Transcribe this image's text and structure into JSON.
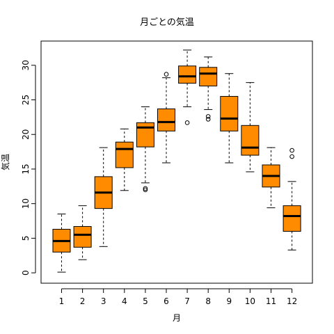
{
  "chart_data": {
    "type": "boxplot",
    "title": "月ごとの気温",
    "xlabel": "月",
    "ylabel": "気温",
    "categories": [
      "1",
      "2",
      "3",
      "4",
      "5",
      "6",
      "7",
      "8",
      "9",
      "10",
      "11",
      "12"
    ],
    "ylim": [
      -1.5,
      33.5
    ],
    "yticks": [
      0,
      5,
      10,
      15,
      20,
      25,
      30
    ],
    "boxes": [
      {
        "min": 0.1,
        "q1": 3.0,
        "median": 4.6,
        "q3": 6.3,
        "max": 8.5,
        "outliers": []
      },
      {
        "min": 1.9,
        "q1": 3.7,
        "median": 5.5,
        "q3": 6.7,
        "max": 9.7,
        "outliers": []
      },
      {
        "min": 3.8,
        "q1": 9.3,
        "median": 11.6,
        "q3": 13.9,
        "max": 18.1,
        "outliers": []
      },
      {
        "min": 11.9,
        "q1": 15.2,
        "median": 17.9,
        "q3": 18.9,
        "max": 20.8,
        "outliers": []
      },
      {
        "min": 13.0,
        "q1": 18.2,
        "median": 21.0,
        "q3": 21.7,
        "max": 24.0,
        "outliers": [
          12.2,
          12.0
        ]
      },
      {
        "min": 15.9,
        "q1": 20.5,
        "median": 21.8,
        "q3": 23.7,
        "max": 28.2,
        "outliers": [
          28.7
        ]
      },
      {
        "min": 24.0,
        "q1": 27.4,
        "median": 28.4,
        "q3": 29.9,
        "max": 32.2,
        "outliers": [
          21.7
        ]
      },
      {
        "min": 23.6,
        "q1": 27.0,
        "median": 28.8,
        "q3": 29.7,
        "max": 31.2,
        "outliers": [
          22.6,
          22.2
        ]
      },
      {
        "min": 15.9,
        "q1": 20.5,
        "median": 22.3,
        "q3": 25.5,
        "max": 28.8,
        "outliers": []
      },
      {
        "min": 14.6,
        "q1": 17.0,
        "median": 18.1,
        "q3": 21.3,
        "max": 27.5,
        "outliers": []
      },
      {
        "min": 9.4,
        "q1": 12.4,
        "median": 14.0,
        "q3": 15.6,
        "max": 18.1,
        "outliers": []
      },
      {
        "min": 3.3,
        "q1": 6.0,
        "median": 8.2,
        "q3": 9.7,
        "max": 13.2,
        "outliers": [
          17.7,
          16.8
        ]
      }
    ],
    "box_color": "#ff8c00",
    "grid": false,
    "legend": "none"
  }
}
